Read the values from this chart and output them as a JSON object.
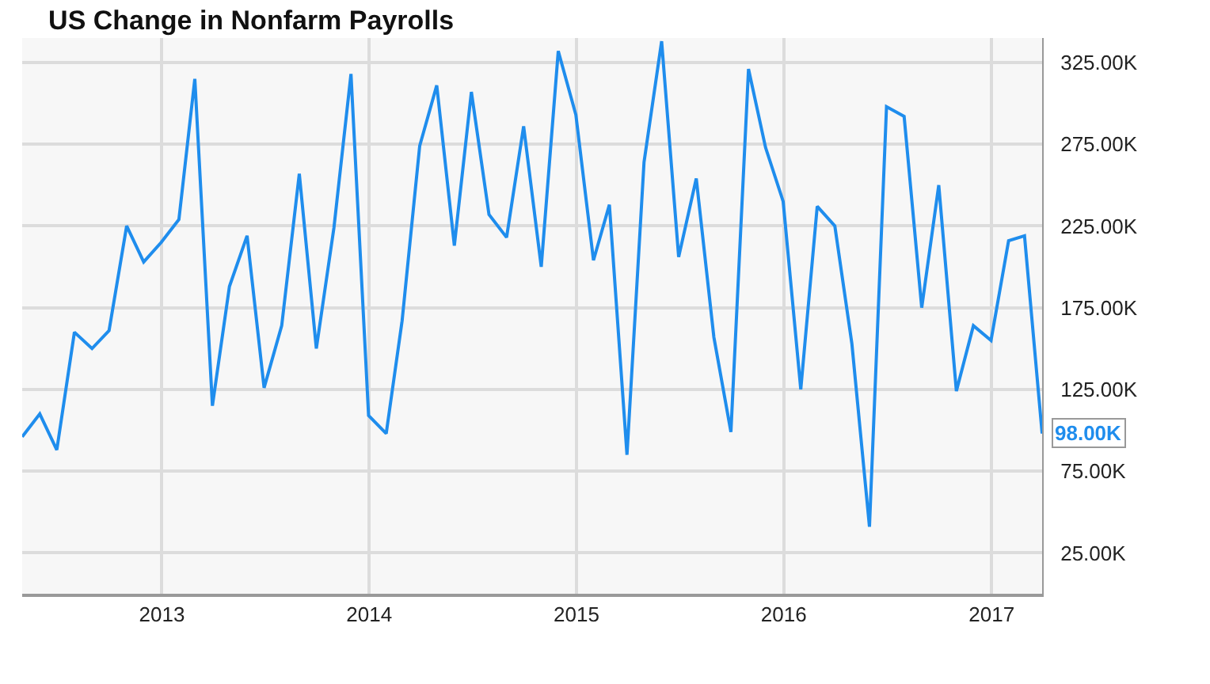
{
  "chart_data": {
    "type": "line",
    "title": "US Change in Nonfarm Payrolls",
    "x": [
      "2012-04-30",
      "2012-05-31",
      "2012-06-30",
      "2012-07-31",
      "2012-08-31",
      "2012-09-30",
      "2012-10-31",
      "2012-11-30",
      "2012-12-31",
      "2013-01-31",
      "2013-02-28",
      "2013-03-31",
      "2013-04-30",
      "2013-05-31",
      "2013-06-30",
      "2013-07-31",
      "2013-08-31",
      "2013-09-30",
      "2013-10-31",
      "2013-11-30",
      "2013-12-31",
      "2014-01-31",
      "2014-02-28",
      "2014-03-31",
      "2014-04-30",
      "2014-05-31",
      "2014-06-30",
      "2014-07-31",
      "2014-08-31",
      "2014-09-30",
      "2014-10-31",
      "2014-11-30",
      "2014-12-31",
      "2015-01-31",
      "2015-02-28",
      "2015-03-31",
      "2015-04-30",
      "2015-05-31",
      "2015-06-30",
      "2015-07-31",
      "2015-08-31",
      "2015-09-30",
      "2015-10-31",
      "2015-11-30",
      "2015-12-31",
      "2016-01-31",
      "2016-02-29",
      "2016-03-31",
      "2016-04-30",
      "2016-05-31",
      "2016-06-30",
      "2016-07-31",
      "2016-08-31",
      "2016-09-30",
      "2016-10-31",
      "2016-11-30",
      "2016-12-31",
      "2017-01-31",
      "2017-02-28",
      "2017-03-31"
    ],
    "series": [
      {
        "color": "#1f8ded",
        "values": [
          96,
          110,
          88,
          160,
          150,
          161,
          225,
          203,
          215,
          229,
          315,
          115,
          188,
          219,
          126,
          164,
          257,
          150,
          224,
          318,
          109,
          98,
          167,
          274,
          311,
          213,
          307,
          232,
          218,
          286,
          200,
          332,
          293,
          204,
          238,
          85,
          264,
          338,
          206,
          254,
          157,
          99,
          321,
          273,
          240,
          125,
          237,
          225,
          153,
          41,
          298,
          292,
          175,
          250,
          124,
          164,
          155,
          216,
          219,
          98
        ]
      }
    ],
    "xlim": [
      "2012-04-30",
      "2017-03-31"
    ],
    "xticks": [
      {
        "value": "2013-01-01",
        "label": "2013"
      },
      {
        "value": "2014-01-01",
        "label": "2014"
      },
      {
        "value": "2015-01-01",
        "label": "2015"
      },
      {
        "value": "2016-01-01",
        "label": "2016"
      },
      {
        "value": "2017-01-01",
        "label": "2017"
      }
    ],
    "ylim": [
      0,
      340
    ],
    "yticks": [
      {
        "value": 25,
        "label": "25.00K"
      },
      {
        "value": 75,
        "label": "75.00K"
      },
      {
        "value": 125,
        "label": "125.00K"
      },
      {
        "value": 175,
        "label": "175.00K"
      },
      {
        "value": 225,
        "label": "225.00K"
      },
      {
        "value": 275,
        "label": "275.00K"
      },
      {
        "value": 325,
        "label": "325.00K"
      }
    ],
    "annotations": [
      {
        "text": "98.00K",
        "x": "2017-03-31",
        "y": 98
      }
    ],
    "grid": true,
    "marker": "none",
    "line_style": "solid"
  }
}
